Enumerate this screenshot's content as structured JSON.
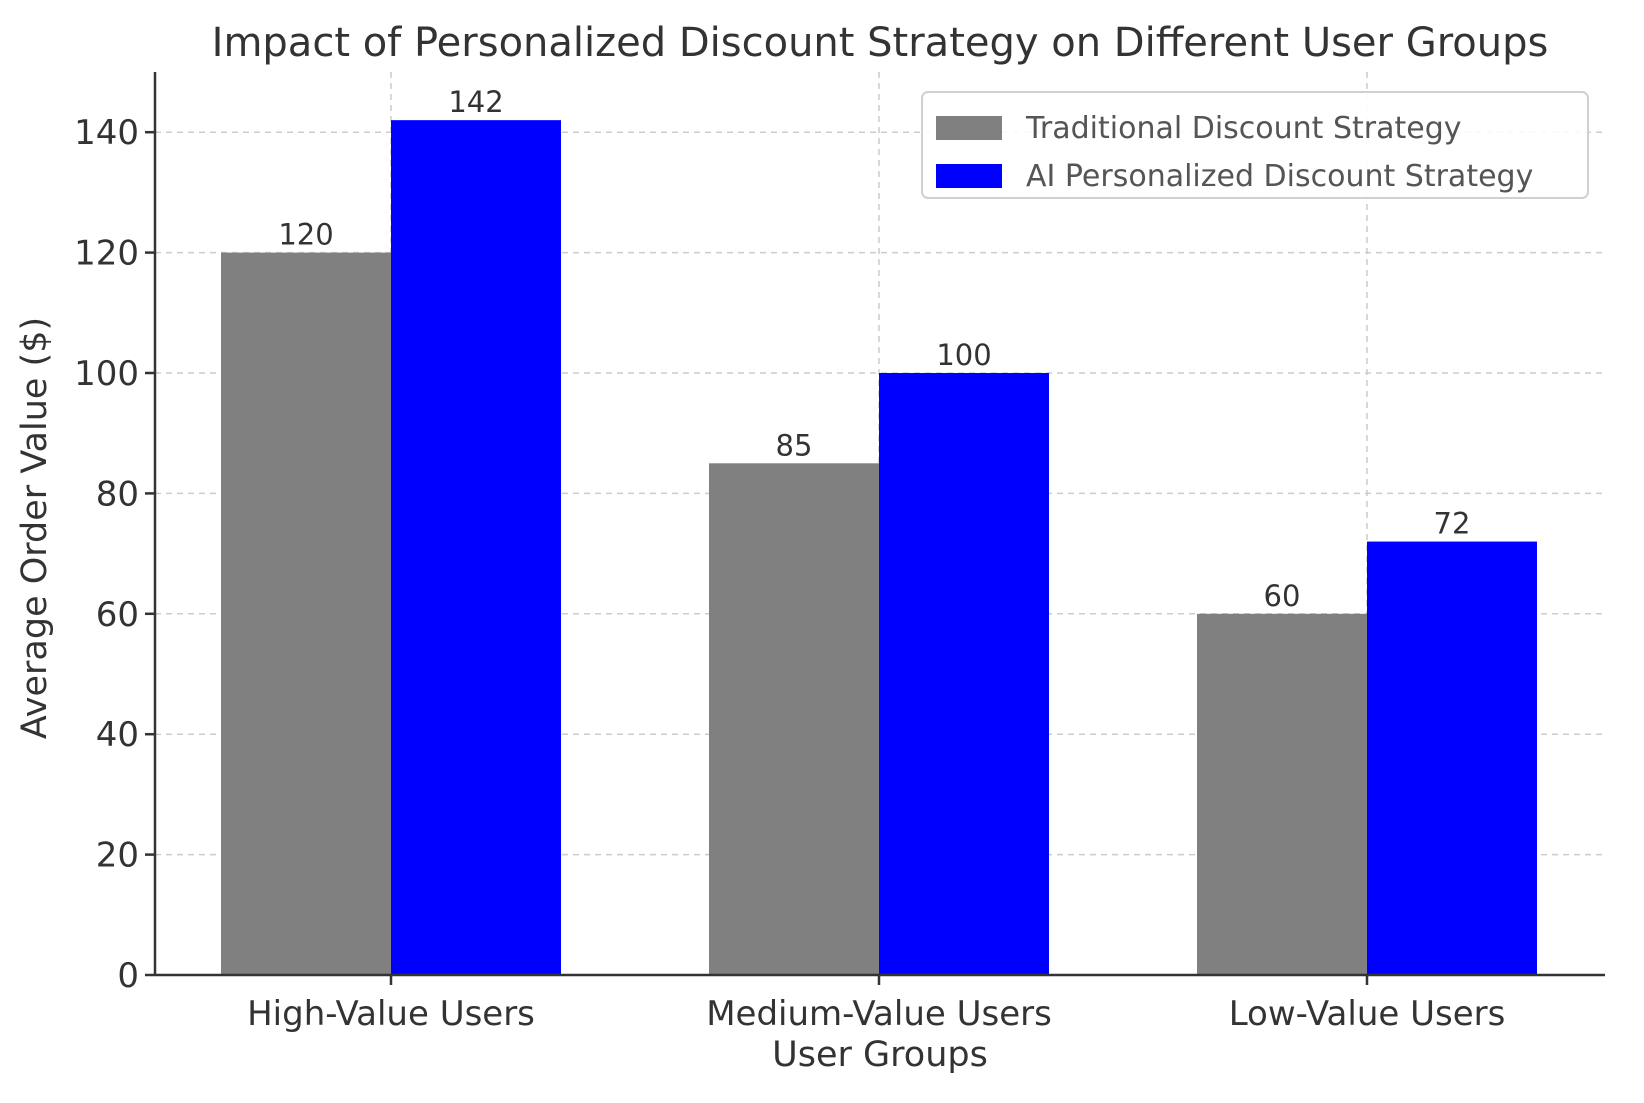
{
  "chart_data": {
    "type": "bar",
    "title": "Impact of Personalized Discount Strategy on Different User Groups",
    "xlabel": "User Groups",
    "ylabel": "Average Order Value ($)",
    "categories": [
      "High-Value Users",
      "Medium-Value Users",
      "Low-Value Users"
    ],
    "series": [
      {
        "name": "Traditional Discount Strategy",
        "color": "#808080",
        "values": [
          120,
          85,
          60
        ]
      },
      {
        "name": "AI Personalized Discount Strategy",
        "color": "#0000ff",
        "values": [
          142,
          100,
          72
        ]
      }
    ],
    "ylim": [
      0,
      150
    ],
    "yticks": [
      0,
      20,
      40,
      60,
      80,
      100,
      120,
      140
    ],
    "grid": true,
    "legend_position": "top-right",
    "data_labels": true
  }
}
